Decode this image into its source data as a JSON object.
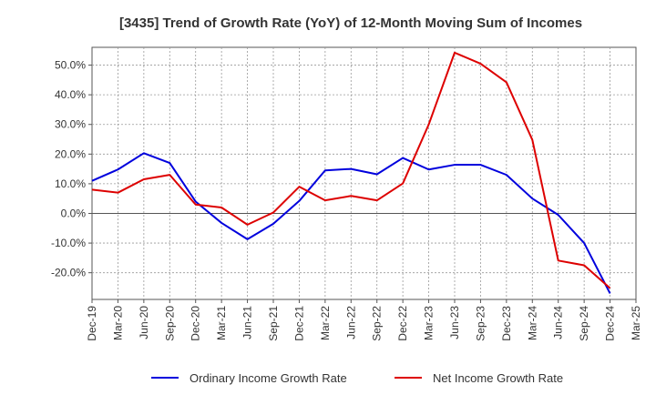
{
  "chart_data": {
    "type": "line",
    "title": "[3435]  Trend of Growth Rate (YoY) of 12-Month Moving Sum of Incomes",
    "xlabel": "",
    "ylabel": "",
    "x": [
      "Dec-19",
      "Mar-20",
      "Jun-20",
      "Sep-20",
      "Dec-20",
      "Mar-21",
      "Jun-21",
      "Sep-21",
      "Dec-21",
      "Mar-22",
      "Jun-22",
      "Sep-22",
      "Dec-22",
      "Mar-23",
      "Jun-23",
      "Sep-23",
      "Dec-23",
      "Mar-24",
      "Jun-24",
      "Sep-24",
      "Dec-24",
      "Mar-25"
    ],
    "ylim": [
      -29,
      56
    ],
    "yticks": [
      50,
      40,
      30,
      20,
      10,
      0,
      -10,
      -20
    ],
    "ytick_labels": [
      "50.0%",
      "40.0%",
      "30.0%",
      "20.0%",
      "10.0%",
      "0.0%",
      "-10.0%",
      "-20.0%"
    ],
    "grid": true,
    "legend": "bottom",
    "series": [
      {
        "name": "Ordinary Income Growth Rate",
        "color": "#0000dd",
        "values": [
          11.0,
          14.8,
          20.3,
          17.0,
          4.0,
          -3.2,
          -8.7,
          -3.5,
          4.2,
          14.5,
          15.0,
          13.2,
          18.7,
          14.8,
          16.4,
          16.4,
          13.0,
          5.0,
          -0.5,
          -10.0,
          -27.0,
          null
        ]
      },
      {
        "name": "Net Income Growth Rate",
        "color": "#dd0000",
        "values": [
          8.0,
          7.0,
          11.5,
          13.0,
          3.0,
          2.0,
          -3.8,
          0.3,
          9.0,
          4.4,
          5.9,
          4.4,
          10.1,
          30.0,
          54.2,
          50.5,
          44.2,
          24.8,
          -15.9,
          -17.5,
          -25.2,
          null
        ]
      }
    ]
  }
}
